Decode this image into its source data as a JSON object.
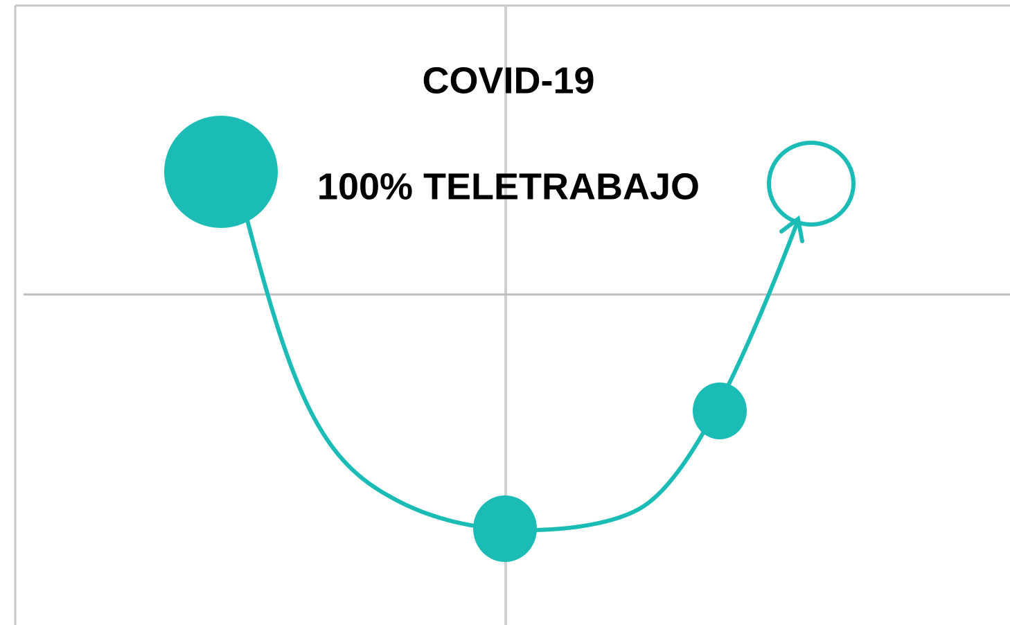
{
  "title": "COVID-19",
  "subtitle": "100% TELETRABAJO"
}
